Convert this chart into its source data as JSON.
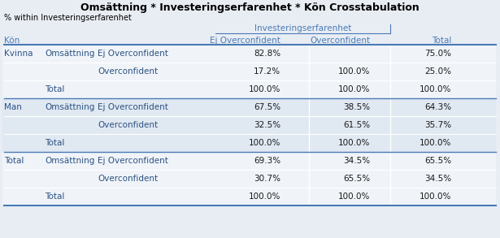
{
  "title": "Omsättning * Investeringserfarenhet * Kön Crosstabulation",
  "subtitle": "% within Investeringserfarenhet",
  "col_header_group": "Investeringserfarenhet",
  "col_headers": [
    "Ej Overconfident",
    "Overconfident",
    "Total"
  ],
  "bg_color": "#e8edf4",
  "header_text_color": "#4a7ab5",
  "dark_text_color": "#2c5282",
  "value_text_color": "#1a1a1a",
  "rows": [
    {
      "col1": "Kvinna",
      "col2": "Omsättning",
      "col3": "Ej Overconfident",
      "v1": "82.8%",
      "v2": "",
      "v3": "75.0%",
      "group": 0
    },
    {
      "col1": "",
      "col2": "",
      "col3": "Overconfident",
      "v1": "17.2%",
      "v2": "100.0%",
      "v3": "25.0%",
      "group": 0
    },
    {
      "col1": "",
      "col2": "Total",
      "col3": "",
      "v1": "100.0%",
      "v2": "100.0%",
      "v3": "100.0%",
      "group": 0
    },
    {
      "col1": "Man",
      "col2": "Omsättning",
      "col3": "Ej Overconfident",
      "v1": "67.5%",
      "v2": "38.5%",
      "v3": "64.3%",
      "group": 1
    },
    {
      "col1": "",
      "col2": "",
      "col3": "Overconfident",
      "v1": "32.5%",
      "v2": "61.5%",
      "v3": "35.7%",
      "group": 1
    },
    {
      "col1": "",
      "col2": "Total",
      "col3": "",
      "v1": "100.0%",
      "v2": "100.0%",
      "v3": "100.0%",
      "group": 1
    },
    {
      "col1": "Total",
      "col2": "Omsättning",
      "col3": "Ej Overconfident",
      "v1": "69.3%",
      "v2": "34.5%",
      "v3": "65.5%",
      "group": 2
    },
    {
      "col1": "",
      "col2": "",
      "col3": "Overconfident",
      "v1": "30.7%",
      "v2": "65.5%",
      "v3": "34.5%",
      "group": 2
    },
    {
      "col1": "",
      "col2": "Total",
      "col3": "",
      "v1": "100.0%",
      "v2": "100.0%",
      "v3": "100.0%",
      "group": 2
    }
  ],
  "row_bg_even": "#e8edf4",
  "row_bg_odd": "#f2f5fa",
  "row_bg_white": "#ffffff",
  "line_color": "#4a7ab5",
  "line_color_thin": "#c8d4e8"
}
